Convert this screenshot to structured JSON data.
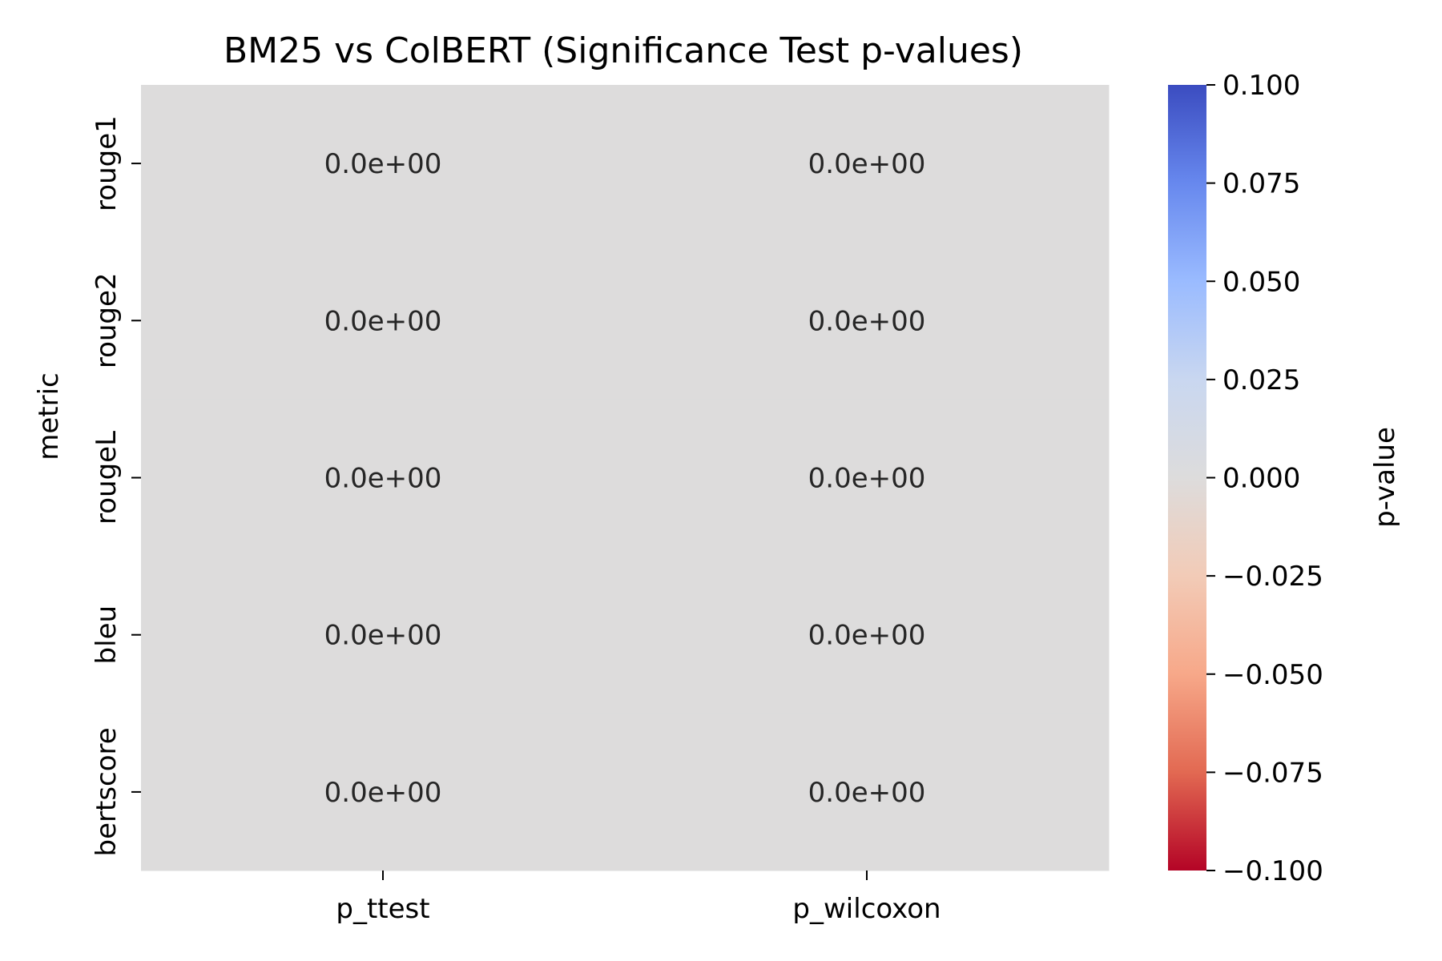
{
  "chart_data": {
    "type": "heatmap",
    "title": "BM25 vs ColBERT (Significance Test p-values)",
    "xlabel": "",
    "ylabel": "metric",
    "x_categories": [
      "p_ttest",
      "p_wilcoxon"
    ],
    "y_categories": [
      "rouge1",
      "rouge2",
      "rougeL",
      "bleu",
      "bertscore"
    ],
    "values": [
      [
        0.0,
        0.0
      ],
      [
        0.0,
        0.0
      ],
      [
        0.0,
        0.0
      ],
      [
        0.0,
        0.0
      ],
      [
        0.0,
        0.0
      ]
    ],
    "annotations": [
      [
        "0.0e+00",
        "0.0e+00"
      ],
      [
        "0.0e+00",
        "0.0e+00"
      ],
      [
        "0.0e+00",
        "0.0e+00"
      ],
      [
        "0.0e+00",
        "0.0e+00"
      ],
      [
        "0.0e+00",
        "0.0e+00"
      ]
    ],
    "colorbar": {
      "label": "p-value",
      "colormap": "coolwarm",
      "range": [
        -0.1,
        0.1
      ],
      "ticks": [
        0.1,
        0.075,
        0.05,
        0.025,
        0.0,
        -0.025,
        -0.05,
        -0.075,
        -0.1
      ],
      "tick_labels": [
        "0.100",
        "0.075",
        "0.050",
        "0.025",
        "0.000",
        "−0.025",
        "−0.050",
        "−0.075",
        "−0.100"
      ],
      "stops": [
        {
          "value": 0.1,
          "color": "#3b4cc0"
        },
        {
          "value": 0.075,
          "color": "#6788ee"
        },
        {
          "value": 0.05,
          "color": "#9abbff"
        },
        {
          "value": 0.025,
          "color": "#c9d7f0"
        },
        {
          "value": 0.0,
          "color": "#dddcdc"
        },
        {
          "value": -0.025,
          "color": "#f2cbb7"
        },
        {
          "value": -0.05,
          "color": "#f7a889"
        },
        {
          "value": -0.075,
          "color": "#e26952"
        },
        {
          "value": -0.1,
          "color": "#b40426"
        }
      ]
    },
    "cell_color": "#dddcdc",
    "annotation_color": "#262626"
  }
}
